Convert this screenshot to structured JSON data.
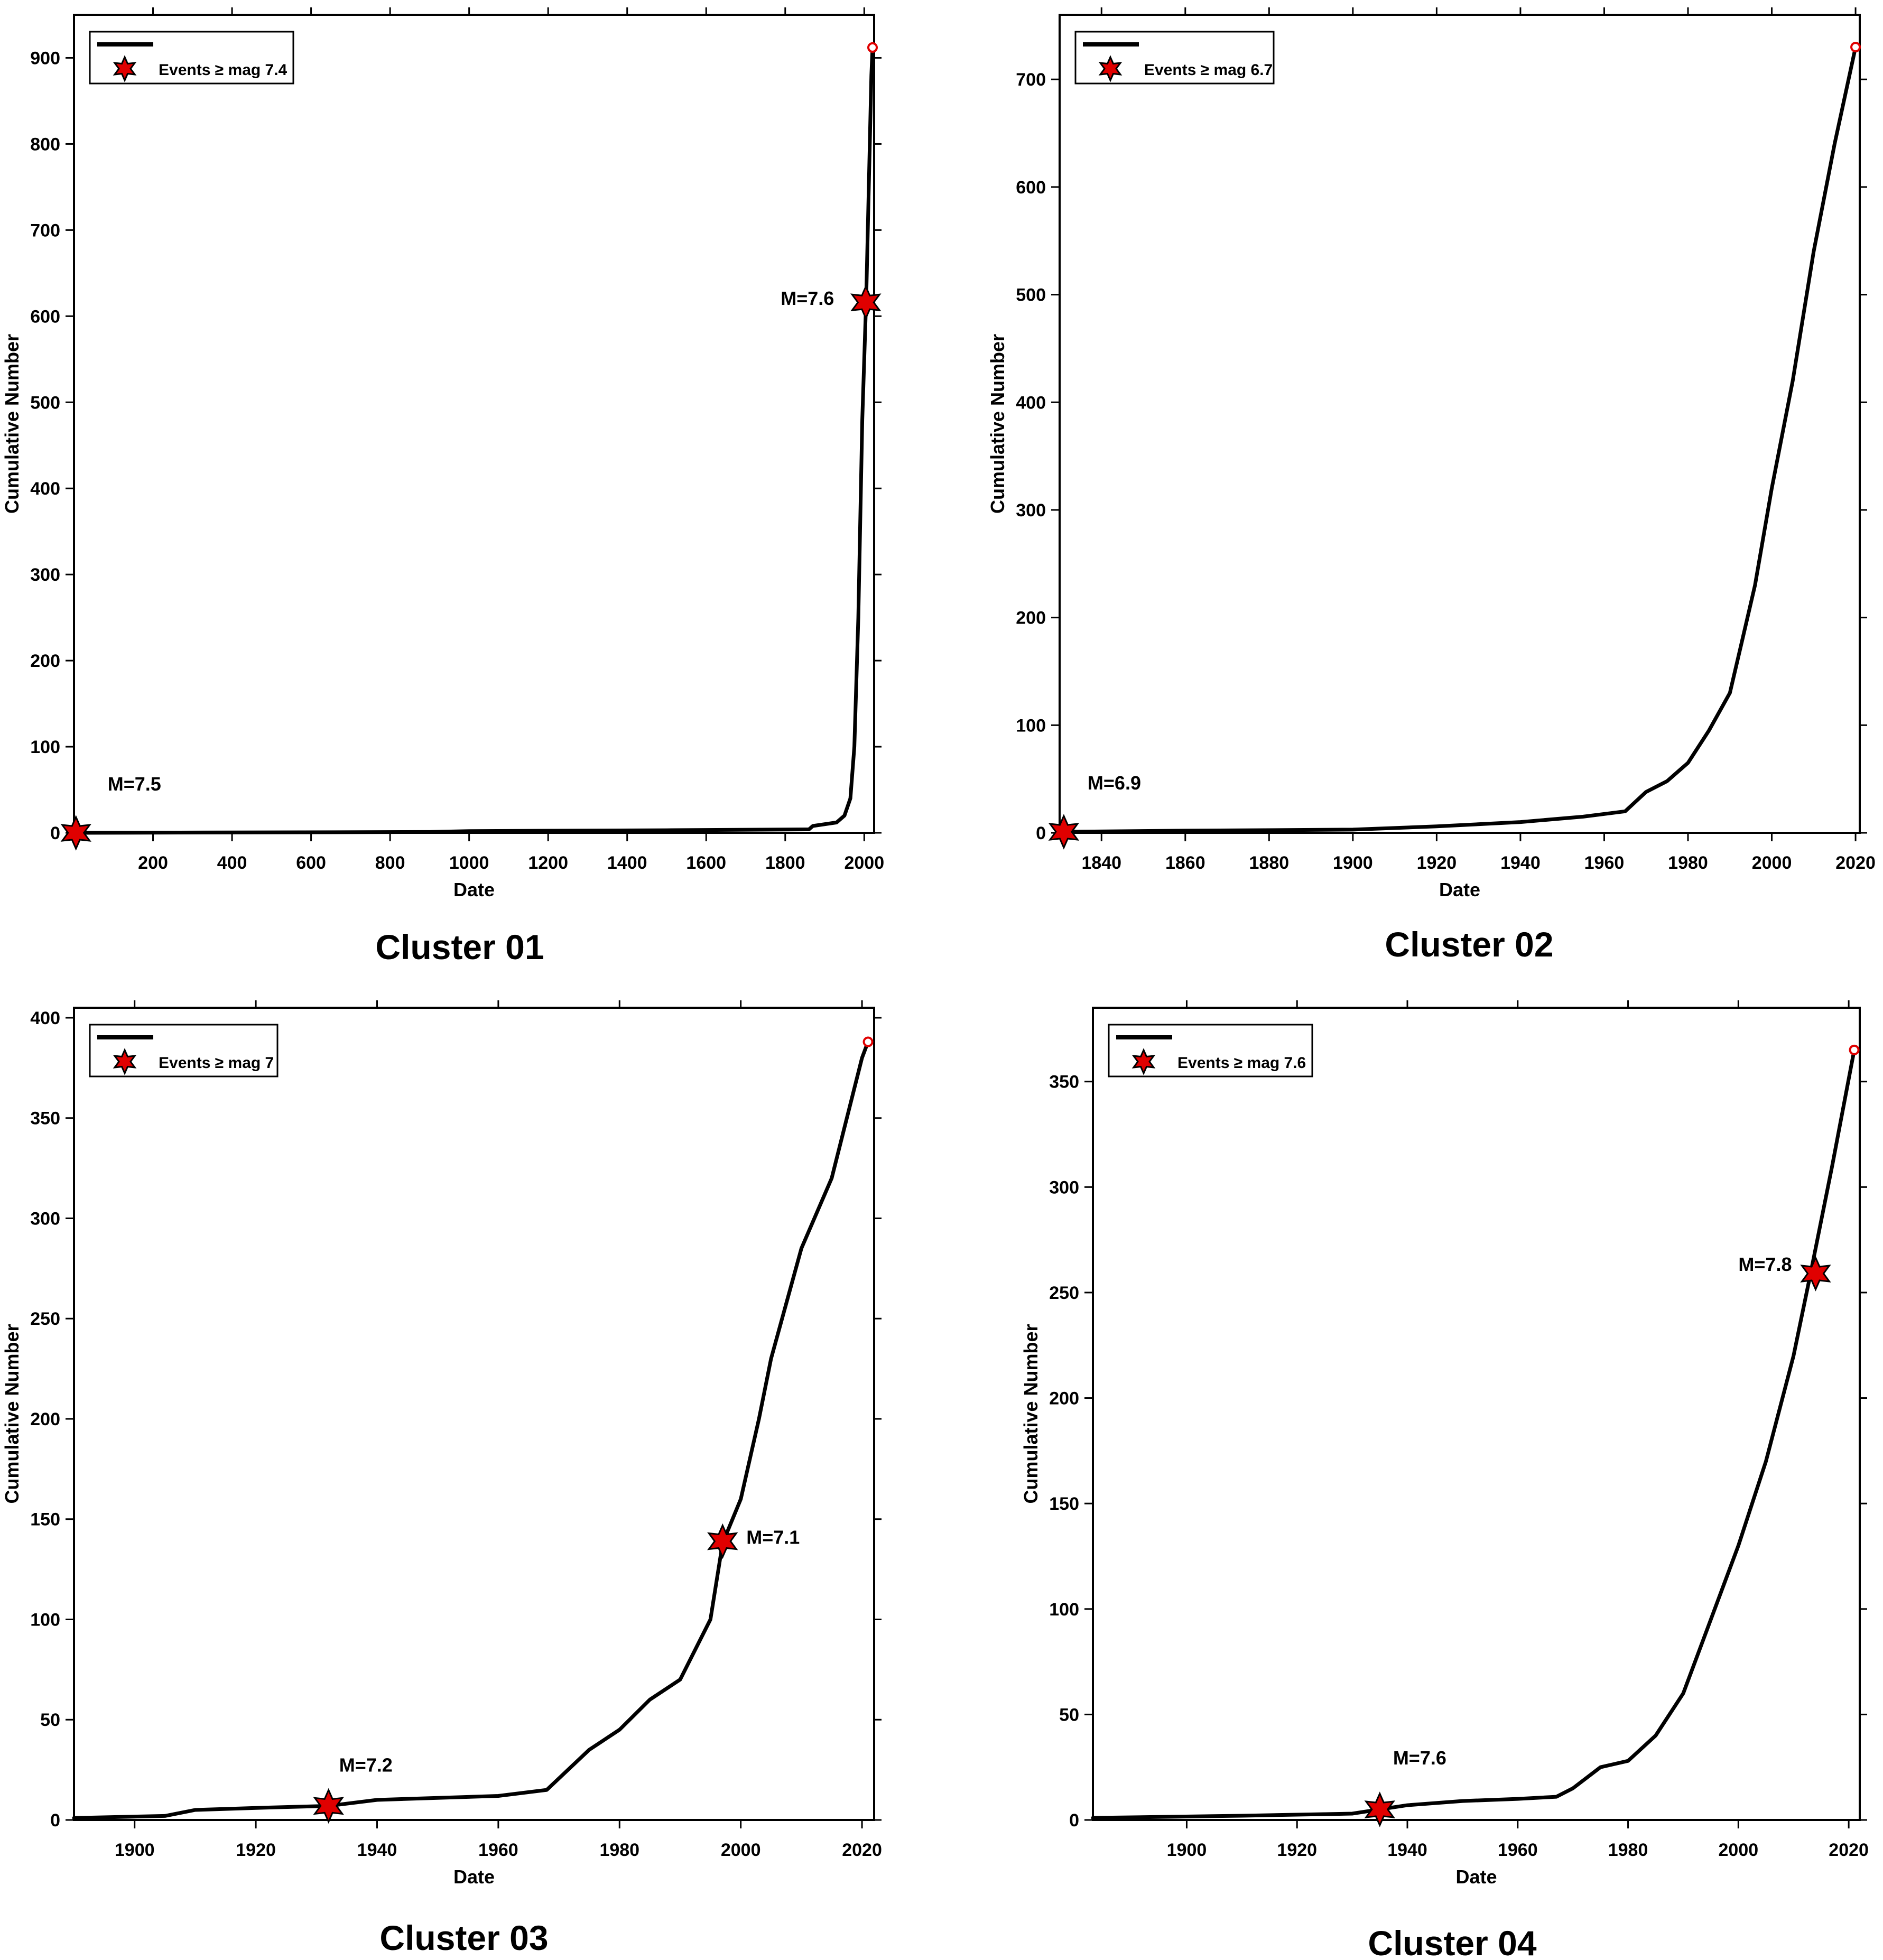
{
  "panels": [
    {
      "caption": "Cluster 01",
      "chart_data": {
        "type": "line",
        "xlabel": "Date",
        "ylabel": "Cumulative Number",
        "xlim": [
          0,
          2025
        ],
        "ylim": [
          0,
          950
        ],
        "x_ticks": [
          200,
          400,
          600,
          800,
          1000,
          1200,
          1400,
          1600,
          1800,
          2000
        ],
        "y_ticks": [
          0,
          100,
          200,
          300,
          400,
          500,
          600,
          700,
          800,
          900
        ],
        "legend": {
          "line_label": "",
          "marker_label": "Events ≥ mag 7.4",
          "placement": "top-left"
        },
        "series": [
          {
            "values": [
              [
                0,
                0
              ],
              [
                900,
                1
              ],
              [
                1000,
                2
              ],
              [
                1500,
                3
              ],
              [
                1860,
                4
              ],
              [
                1870,
                8
              ],
              [
                1930,
                12
              ],
              [
                1950,
                20
              ],
              [
                1965,
                40
              ],
              [
                1975,
                100
              ],
              [
                1985,
                250
              ],
              [
                1995,
                480
              ],
              [
                2005,
                620
              ],
              [
                2012,
                760
              ],
              [
                2018,
                880
              ],
              [
                2021,
                912
              ]
            ]
          }
        ],
        "events": [
          {
            "x": 5,
            "y": 0,
            "label": "M=7.5"
          },
          {
            "x": 2004,
            "y": 616,
            "label": "M=7.6"
          }
        ],
        "end_marker": {
          "x": 2021,
          "y": 912
        }
      }
    },
    {
      "caption": "Cluster 02",
      "chart_data": {
        "type": "line",
        "xlabel": "Date",
        "ylabel": "Cumulative Number",
        "xlim": [
          1830,
          2021
        ],
        "ylim": [
          0,
          760
        ],
        "x_ticks": [
          1840,
          1860,
          1880,
          1900,
          1920,
          1940,
          1960,
          1980,
          2000,
          2020
        ],
        "y_ticks": [
          0,
          100,
          200,
          300,
          400,
          500,
          600,
          700
        ],
        "legend": {
          "line_label": "",
          "marker_label": "Events ≥ mag 6.7",
          "placement": "top-left"
        },
        "series": [
          {
            "values": [
              [
                1831,
                1
              ],
              [
                1860,
                2
              ],
              [
                1900,
                3
              ],
              [
                1920,
                6
              ],
              [
                1940,
                10
              ],
              [
                1955,
                15
              ],
              [
                1965,
                20
              ],
              [
                1970,
                38
              ],
              [
                1975,
                48
              ],
              [
                1980,
                65
              ],
              [
                1985,
                95
              ],
              [
                1990,
                130
              ],
              [
                1993,
                180
              ],
              [
                1996,
                230
              ],
              [
                2000,
                320
              ],
              [
                2005,
                420
              ],
              [
                2010,
                540
              ],
              [
                2015,
                640
              ],
              [
                2020,
                730
              ]
            ]
          }
        ],
        "events": [
          {
            "x": 1831,
            "y": 1,
            "label": "M=6.9"
          }
        ],
        "end_marker": {
          "x": 2020,
          "y": 730
        }
      }
    },
    {
      "caption": "Cluster 03",
      "chart_data": {
        "type": "line",
        "xlabel": "Date",
        "ylabel": "Cumulative Number",
        "xlim": [
          1890,
          2022
        ],
        "ylim": [
          0,
          405
        ],
        "x_ticks": [
          1900,
          1920,
          1940,
          1960,
          1980,
          2000,
          2020
        ],
        "y_ticks": [
          0,
          50,
          100,
          150,
          200,
          250,
          300,
          350,
          400
        ],
        "legend": {
          "line_label": "",
          "marker_label": "Events ≥ mag 7",
          "placement": "top-left"
        },
        "series": [
          {
            "values": [
              [
                1890,
                1
              ],
              [
                1905,
                2
              ],
              [
                1910,
                5
              ],
              [
                1920,
                6
              ],
              [
                1932,
                7
              ],
              [
                1940,
                10
              ],
              [
                1960,
                12
              ],
              [
                1968,
                15
              ],
              [
                1975,
                35
              ],
              [
                1980,
                45
              ],
              [
                1985,
                60
              ],
              [
                1990,
                70
              ],
              [
                1995,
                100
              ],
              [
                1997,
                138
              ],
              [
                2000,
                160
              ],
              [
                2003,
                200
              ],
              [
                2005,
                230
              ],
              [
                2010,
                285
              ],
              [
                2015,
                320
              ],
              [
                2020,
                380
              ],
              [
                2021,
                388
              ]
            ]
          }
        ],
        "events": [
          {
            "x": 1932,
            "y": 7,
            "label": "M=7.2"
          },
          {
            "x": 1997,
            "y": 139,
            "label": "M=7.1"
          }
        ],
        "end_marker": {
          "x": 2021,
          "y": 388
        }
      }
    },
    {
      "caption": "Cluster 04",
      "chart_data": {
        "type": "line",
        "xlabel": "Date",
        "ylabel": "Cumulative Number",
        "xlim": [
          1883,
          2022
        ],
        "ylim": [
          0,
          385
        ],
        "x_ticks": [
          1900,
          1920,
          1940,
          1960,
          1980,
          2000,
          2020
        ],
        "y_ticks": [
          0,
          50,
          100,
          150,
          200,
          250,
          300,
          350
        ],
        "legend": {
          "line_label": "",
          "marker_label": "Events ≥ mag 7.6",
          "placement": "top-left"
        },
        "series": [
          {
            "values": [
              [
                1883,
                1
              ],
              [
                1910,
                2
              ],
              [
                1930,
                3
              ],
              [
                1935,
                5
              ],
              [
                1940,
                7
              ],
              [
                1950,
                9
              ],
              [
                1960,
                10
              ],
              [
                1967,
                11
              ],
              [
                1970,
                15
              ],
              [
                1975,
                25
              ],
              [
                1980,
                28
              ],
              [
                1985,
                40
              ],
              [
                1990,
                60
              ],
              [
                1995,
                95
              ],
              [
                2000,
                130
              ],
              [
                2005,
                170
              ],
              [
                2010,
                220
              ],
              [
                2013,
                258
              ],
              [
                2017,
                310
              ],
              [
                2021,
                365
              ]
            ]
          }
        ],
        "events": [
          {
            "x": 1935,
            "y": 5,
            "label": "M=7.6"
          },
          {
            "x": 2014,
            "y": 259,
            "label": "M=7.8"
          }
        ],
        "end_marker": {
          "x": 2021,
          "y": 365
        }
      }
    }
  ]
}
